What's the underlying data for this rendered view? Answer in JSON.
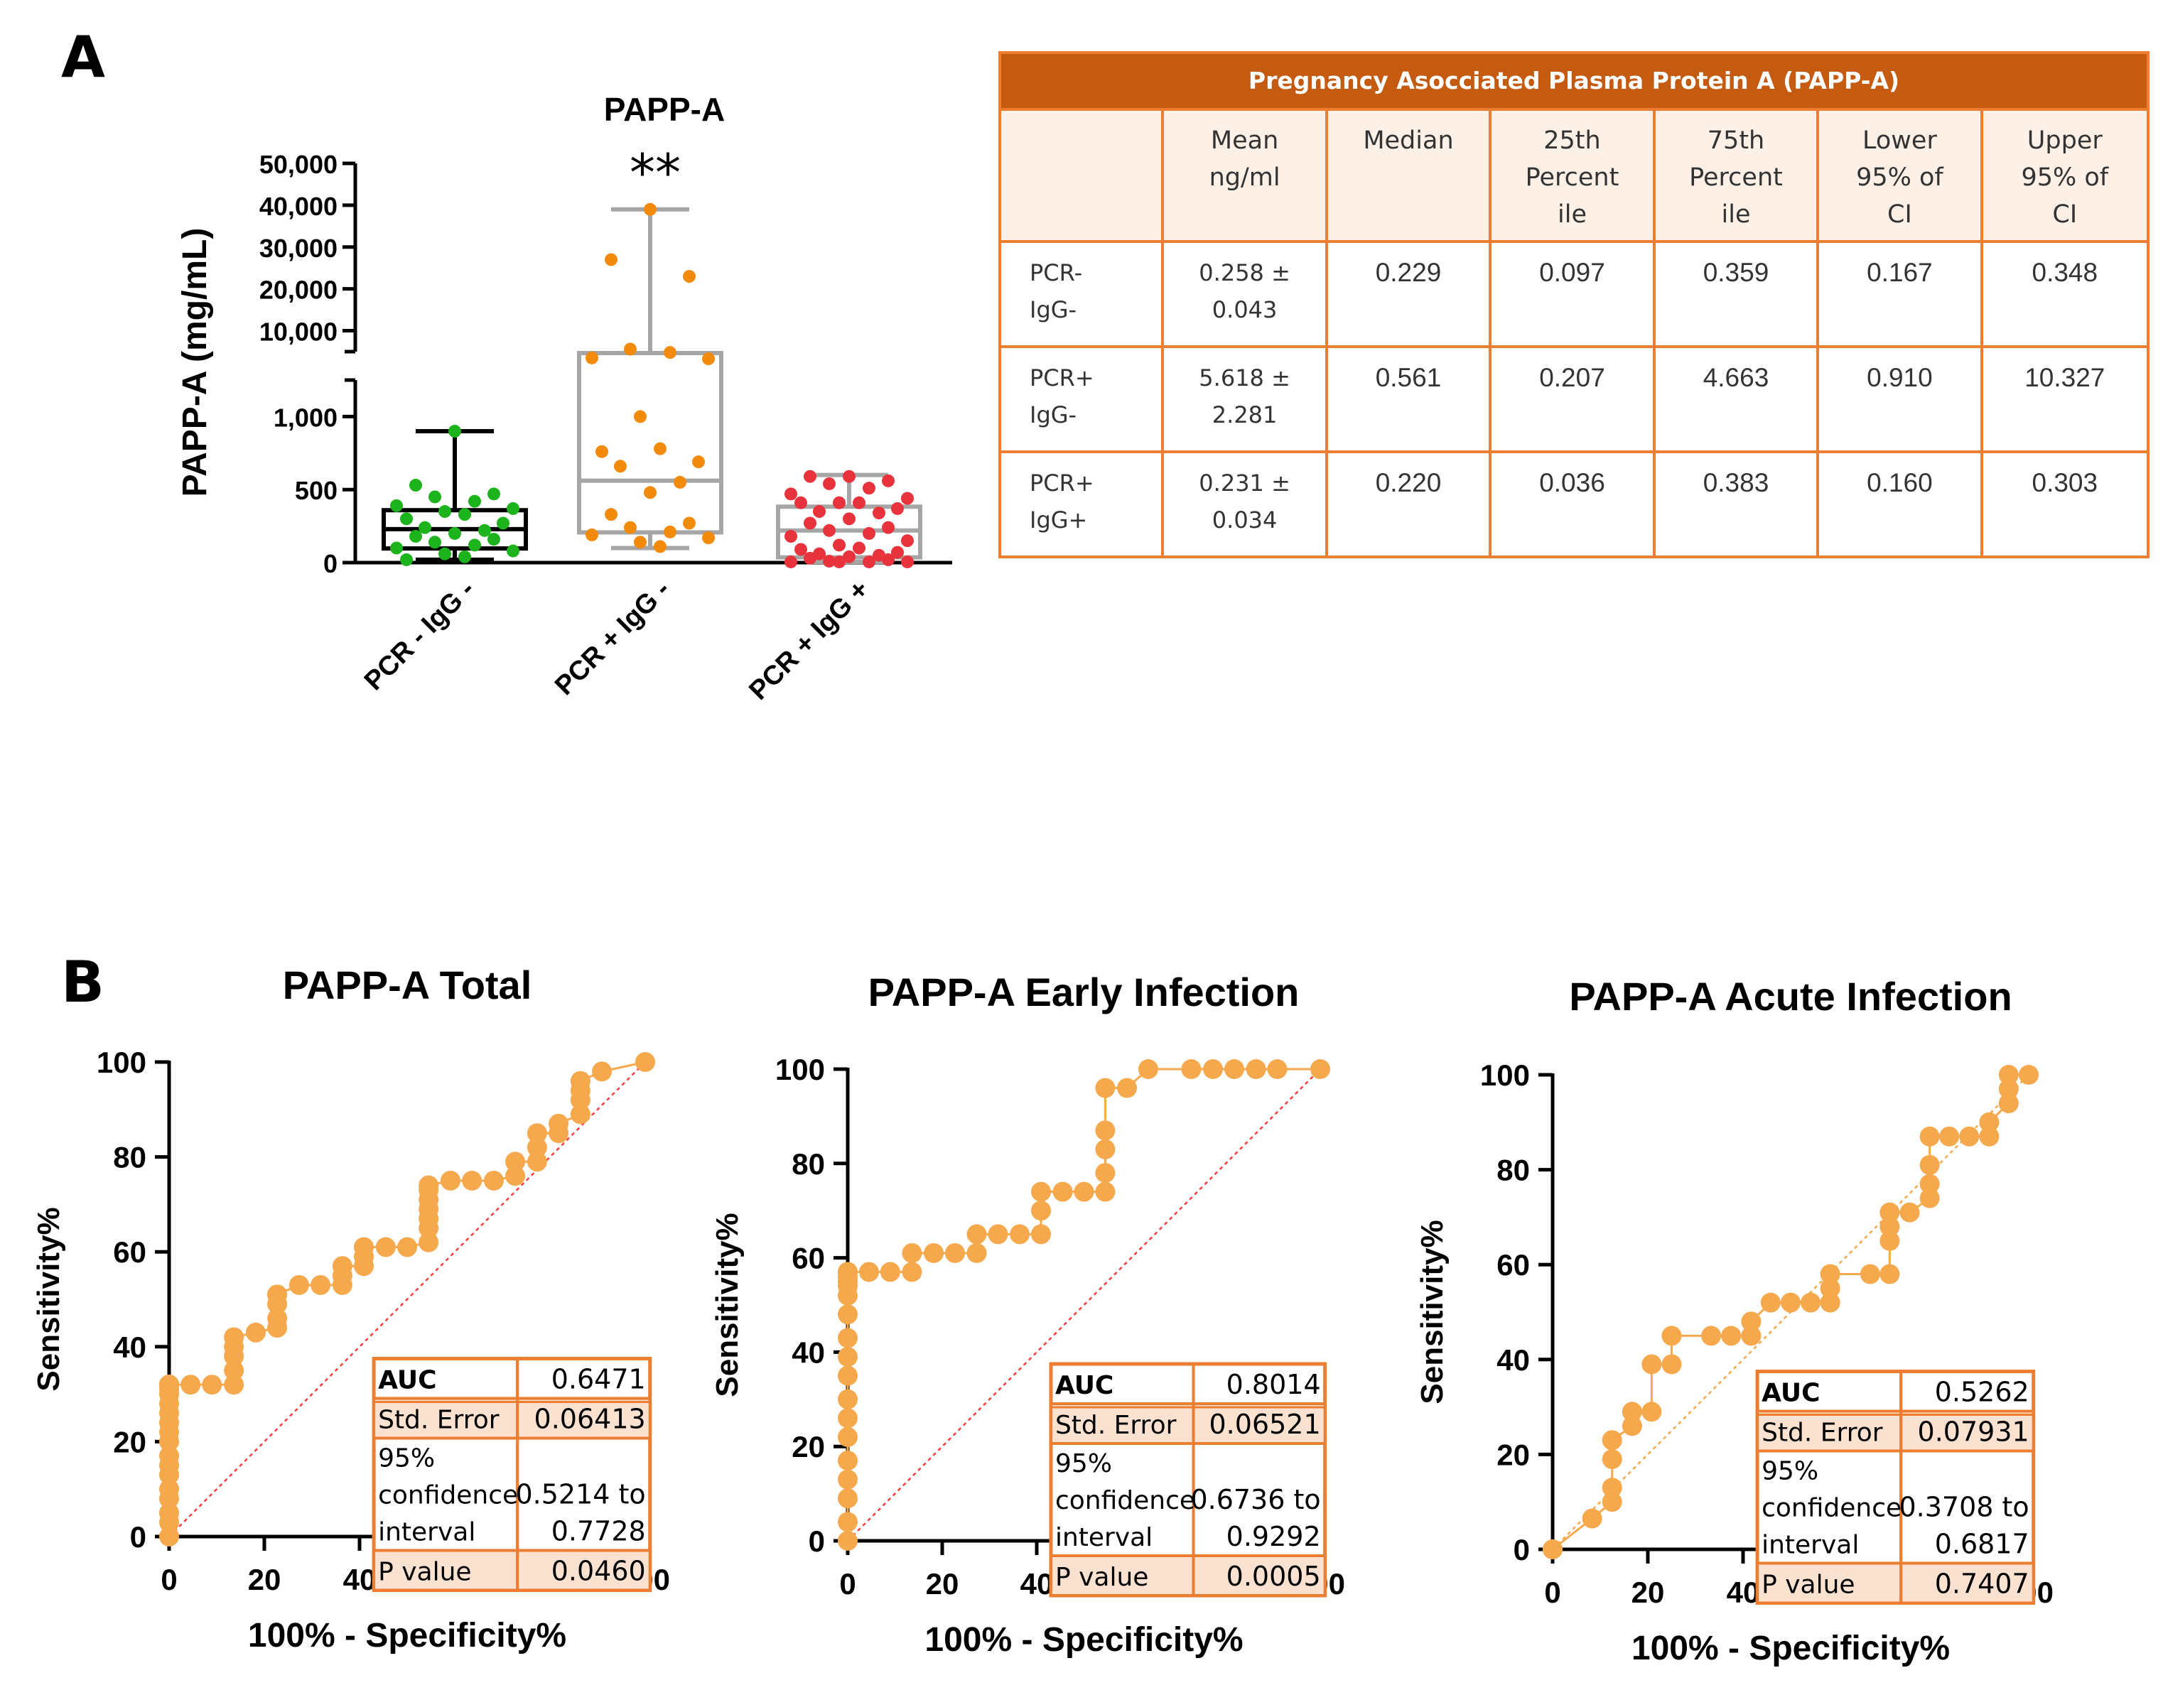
{
  "panel_labels": {
    "a": "A",
    "b": "B"
  },
  "colors": {
    "green": "#1db31d",
    "orange": "#f28a0c",
    "red": "#e8323c",
    "roc_orange": "#f6a94c",
    "table_header": "#c55a11",
    "table_border": "#ec7d31",
    "table_fill": "#fdf0e7",
    "box_black": "#000000",
    "box_gray": "#a6a6a6",
    "diag_red": "#ff3b3b",
    "diag_orange": "#f6a94c"
  },
  "chart_data": [
    {
      "id": "boxplot",
      "type": "box",
      "title": "PAPP-A",
      "ylabel": "PAPP-A (mg/mL)",
      "significance": "**",
      "categories": [
        "PCR - IgG -",
        "PCR + IgG -",
        "PCR + IgG +"
      ],
      "y_ticks_lower": [
        "0",
        "500",
        "1,000"
      ],
      "y_ticks_upper": [
        "10,000",
        "20,000",
        "30,000",
        "40,000",
        "50,000"
      ],
      "y_break": {
        "lower_range": [
          0,
          1250
        ],
        "upper_range": [
          5000,
          50000
        ]
      },
      "groups": [
        {
          "name": "PCR - IgG -",
          "color": "green",
          "box_color": "box_black",
          "min": 20,
          "q1": 97,
          "median": 229,
          "q3": 359,
          "max": 900,
          "points": [
            900,
            530,
            470,
            450,
            420,
            390,
            370,
            350,
            330,
            300,
            270,
            240,
            220,
            200,
            180,
            160,
            140,
            120,
            100,
            80,
            60,
            40,
            20
          ]
        },
        {
          "name": "PCR + IgG -",
          "color": "orange",
          "box_color": "box_gray",
          "min": 100,
          "q1": 207,
          "median": 561,
          "q3": 4663,
          "max": 39000,
          "points": [
            39000,
            27000,
            23000,
            5600,
            4800,
            3500,
            3300,
            1000,
            780,
            760,
            690,
            660,
            550,
            480,
            330,
            270,
            240,
            210,
            190,
            170,
            140,
            110
          ]
        },
        {
          "name": "PCR + IgG +",
          "color": "red",
          "box_color": "box_gray",
          "min": 5,
          "q1": 36,
          "median": 220,
          "q3": 383,
          "max": 600,
          "points": [
            590,
            590,
            560,
            540,
            510,
            470,
            440,
            410,
            410,
            410,
            370,
            350,
            340,
            300,
            270,
            240,
            220,
            200,
            180,
            150,
            120,
            100,
            90,
            70,
            60,
            50,
            40,
            30,
            20,
            10,
            5,
            5,
            5,
            5
          ]
        }
      ]
    },
    {
      "id": "roc_total",
      "type": "line",
      "title": "PAPP-A Total",
      "xlabel": "100% - Specificity%",
      "ylabel": "Sensitivity%",
      "xlim": [
        0,
        100
      ],
      "ylim": [
        0,
        100
      ],
      "ticks": [
        "0",
        "20",
        "40",
        "60",
        "80",
        "100"
      ],
      "diagonal_color": "diag_red",
      "x": [
        0,
        0,
        0,
        0,
        0,
        0,
        0,
        0,
        0,
        0,
        0,
        0,
        0,
        0,
        0,
        0,
        0,
        0,
        0,
        0,
        0,
        0,
        0,
        0,
        0,
        0,
        0,
        0,
        0,
        0,
        0,
        0,
        0,
        4.5,
        9,
        13.6,
        13.6,
        13.6,
        13.6,
        13.6,
        18.2,
        22.7,
        22.7,
        22.7,
        22.7,
        22.7,
        27.3,
        31.8,
        36.4,
        36.4,
        36.4,
        40.9,
        40.9,
        40.9,
        45.5,
        50,
        54.5,
        54.5,
        54.5,
        54.5,
        54.5,
        54.5,
        54.5,
        59.1,
        63.6,
        68.2,
        72.7,
        72.7,
        77.3,
        77.3,
        77.3,
        81.8,
        81.8,
        86.4,
        86.4,
        86.4,
        86.4,
        90.9,
        100
      ],
      "y": [
        0,
        3,
        5,
        8,
        10,
        13,
        15,
        17,
        20,
        22,
        24,
        26,
        28,
        30,
        31,
        32,
        32,
        32,
        32,
        32,
        32,
        32,
        32,
        32,
        32,
        32,
        32,
        32,
        32,
        32,
        32,
        32,
        32,
        32,
        32,
        32,
        35,
        38,
        40,
        42,
        43,
        44,
        46,
        49,
        51,
        51,
        53,
        53,
        53,
        55,
        57,
        57,
        59,
        61,
        61,
        61,
        62,
        65,
        67,
        69,
        71,
        73,
        74,
        75,
        75,
        75,
        76,
        79,
        79,
        82,
        85,
        85,
        87,
        89,
        92,
        94,
        96,
        98,
        100
      ],
      "stats": [
        {
          "label": "AUC",
          "value": "0.6471"
        },
        {
          "label": "Std. Error",
          "value": "0.06413"
        },
        {
          "label_lines": [
            "95%",
            "confidence",
            "interval"
          ],
          "value_lines": [
            "0.5214 to",
            "0.7728"
          ]
        },
        {
          "label": "P value",
          "value": "0.0460"
        }
      ]
    },
    {
      "id": "roc_early",
      "type": "line",
      "title": "PAPP-A Early Infection",
      "xlabel": "100% - Specificity%",
      "ylabel": "Sensitivity%",
      "xlim": [
        0,
        100
      ],
      "ylim": [
        0,
        100
      ],
      "ticks": [
        "0",
        "20",
        "40",
        "60",
        "80",
        "100"
      ],
      "diagonal_color": "diag_red",
      "x": [
        0,
        0,
        0,
        0,
        0,
        0,
        0,
        0,
        0,
        0,
        0,
        0,
        0,
        0,
        0,
        0,
        0,
        0,
        4.5,
        9,
        13.6,
        13.6,
        18.2,
        22.7,
        27.3,
        27.3,
        31.8,
        36.4,
        40.9,
        40.9,
        40.9,
        45.5,
        50,
        54.5,
        54.5,
        54.5,
        54.5,
        54.5,
        59.1,
        63.6,
        72.7,
        77.3,
        81.8,
        86.4,
        90.9,
        100
      ],
      "y": [
        0,
        4,
        9,
        13,
        17,
        22,
        26,
        30,
        35,
        39,
        43,
        48,
        52,
        54,
        55,
        56,
        57,
        57,
        57,
        57,
        57,
        61,
        61,
        61,
        61,
        65,
        65,
        65,
        65,
        70,
        74,
        74,
        74,
        74,
        78,
        83,
        87,
        96,
        96,
        100,
        100,
        100,
        100,
        100,
        100,
        100
      ],
      "stats": [
        {
          "label": "AUC",
          "value": "0.8014"
        },
        {
          "label": "Std. Error",
          "value": "0.06521"
        },
        {
          "label_lines": [
            "95%",
            "confidence",
            "interval"
          ],
          "value_lines": [
            "0.6736 to",
            "0.9292"
          ]
        },
        {
          "label": "P value",
          "value": "0.0005"
        }
      ]
    },
    {
      "id": "roc_acute",
      "type": "line",
      "title": "PAPP-A Acute Infection",
      "xlabel": "100% - Specificity%",
      "ylabel": "Sensitivity%",
      "xlim": [
        0,
        100
      ],
      "ylim": [
        0,
        100
      ],
      "ticks": [
        "0",
        "20",
        "40",
        "60",
        "80",
        "100"
      ],
      "diagonal_color": "diag_orange",
      "x": [
        0,
        0,
        8.3,
        12.5,
        12.5,
        12.5,
        12.5,
        12.5,
        16.7,
        16.7,
        20.8,
        20.8,
        25,
        25,
        33.3,
        37.5,
        41.7,
        41.7,
        45.8,
        50,
        54.2,
        58.3,
        58.3,
        58.3,
        66.7,
        70.8,
        70.8,
        70.8,
        70.8,
        75,
        79.2,
        79.2,
        79.2,
        79.2,
        83.3,
        87.5,
        91.7,
        91.7,
        95.8,
        95.8,
        95.8,
        100
      ],
      "y": [
        0,
        0,
        6.5,
        10,
        13,
        19,
        23,
        23,
        26,
        29,
        29,
        39,
        39,
        45,
        45,
        45,
        45,
        48,
        52,
        52,
        52,
        52,
        55,
        58,
        58,
        58,
        65,
        68,
        71,
        71,
        74,
        77,
        81,
        87,
        87,
        87,
        87,
        90,
        94,
        97,
        100,
        100
      ],
      "stats": [
        {
          "label": "AUC",
          "value": "0.5262"
        },
        {
          "label": "Std. Error",
          "value": "0.07931"
        },
        {
          "label_lines": [
            "95%",
            "confidence",
            "interval"
          ],
          "value_lines": [
            "0.3708 to",
            "0.6817"
          ]
        },
        {
          "label": "P value",
          "value": "0.7407"
        }
      ]
    }
  ],
  "table": {
    "title": "Pregnancy Asocciated Plasma Protein A (PAPP-A)",
    "headers": [
      {
        "lines": [
          "Mean",
          "ng/ml"
        ]
      },
      {
        "lines": [
          "Median"
        ]
      },
      {
        "lines": [
          "25th",
          "Percent",
          "ile"
        ]
      },
      {
        "lines": [
          "75th",
          "Percent",
          "ile"
        ]
      },
      {
        "lines": [
          "Lower",
          "95% of",
          "CI"
        ]
      },
      {
        "lines": [
          "Upper",
          "95% of",
          "CI"
        ]
      }
    ],
    "rows": [
      {
        "label": [
          "PCR-",
          "IgG-"
        ],
        "mean": [
          "0.258 ±",
          "0.043"
        ],
        "median": "0.229",
        "p25": "0.097",
        "p75": "0.359",
        "lower": "0.167",
        "upper": "0.348"
      },
      {
        "label": [
          "PCR+",
          "IgG-"
        ],
        "mean": [
          "5.618 ±",
          "2.281"
        ],
        "median": "0.561",
        "p25": "0.207",
        "p75": "4.663",
        "lower": "0.910",
        "upper": "10.327"
      },
      {
        "label": [
          "PCR+",
          "IgG+"
        ],
        "mean": [
          "0.231 ±",
          "0.034"
        ],
        "median": "0.220",
        "p25": "0.036",
        "p75": "0.383",
        "lower": "0.160",
        "upper": "0.303"
      }
    ]
  }
}
